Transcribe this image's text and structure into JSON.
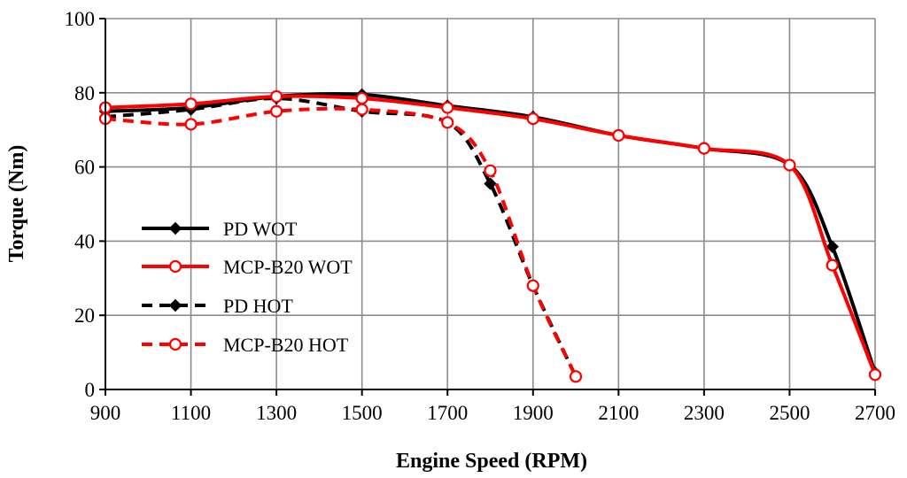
{
  "chart_data": {
    "type": "line",
    "title": "",
    "xlabel": "Engine Speed (RPM)",
    "ylabel": "Torque (Nm)",
    "xlim": [
      900,
      2700
    ],
    "ylim": [
      0,
      100
    ],
    "xticks": [
      900,
      1100,
      1300,
      1500,
      1700,
      1900,
      2100,
      2300,
      2500,
      2700
    ],
    "yticks": [
      0,
      20,
      40,
      60,
      80,
      100
    ],
    "grid": true,
    "legend_position": "left-middle",
    "series": [
      {
        "name": "PD WOT",
        "color": "#000000",
        "dash": "solid",
        "marker": "diamond",
        "x": [
          900,
          1100,
          1300,
          1500,
          1700,
          1900,
          2100,
          2300,
          2500,
          2600,
          2700
        ],
        "y": [
          75,
          76,
          79,
          79.5,
          76.5,
          73.5,
          68.5,
          65,
          60.5,
          38.5,
          4.5
        ]
      },
      {
        "name": "MCP-B20 WOT",
        "color": "#ff0000",
        "dash": "solid",
        "marker": "circle-open",
        "x": [
          900,
          1100,
          1300,
          1500,
          1700,
          1900,
          2100,
          2300,
          2500,
          2600,
          2700
        ],
        "y": [
          76,
          77,
          79,
          78.5,
          76,
          73,
          68.5,
          65,
          60.5,
          33.5,
          4
        ]
      },
      {
        "name": "PD HOT",
        "color": "#000000",
        "dash": "dashed",
        "marker": "diamond",
        "x": [
          900,
          1100,
          1300,
          1500,
          1700,
          1800,
          1900,
          2000
        ],
        "y": [
          73.5,
          75.5,
          78.5,
          75,
          72,
          55.5,
          28,
          3.5
        ]
      },
      {
        "name": "MCP-B20 HOT",
        "color": "#ff0000",
        "dash": "dashed",
        "marker": "circle-open",
        "x": [
          900,
          1100,
          1300,
          1500,
          1700,
          1800,
          1900,
          2000
        ],
        "y": [
          73,
          71.5,
          75,
          75.5,
          72,
          59,
          28,
          3.5
        ]
      }
    ]
  }
}
